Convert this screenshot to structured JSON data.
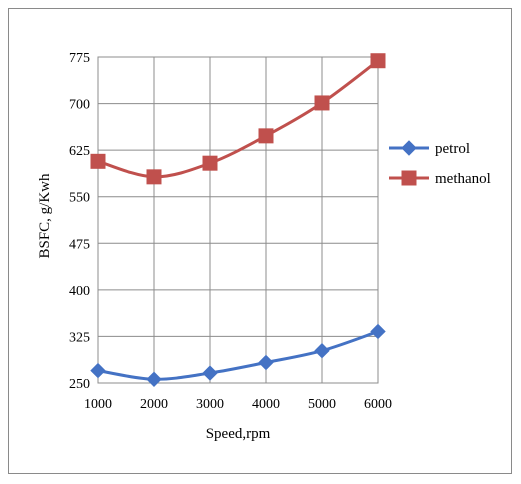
{
  "chart_data": {
    "type": "line",
    "title": "",
    "xlabel": "Speed,rpm",
    "ylabel": "BSFC, g/Kwh",
    "x": [
      1000,
      2000,
      3000,
      4000,
      5000,
      6000
    ],
    "ylim": [
      250,
      775
    ],
    "yticks": [
      250,
      325,
      400,
      475,
      550,
      625,
      700,
      775
    ],
    "grid": true,
    "legend_position": "right",
    "series": [
      {
        "name": "petrol",
        "color": "#4472C4",
        "marker": "diamond",
        "values": [
          270,
          256,
          266,
          283,
          302,
          333
        ]
      },
      {
        "name": "methanol",
        "color": "#C0504D",
        "marker": "square",
        "values": [
          607,
          582,
          604,
          648,
          701,
          769
        ]
      }
    ]
  }
}
